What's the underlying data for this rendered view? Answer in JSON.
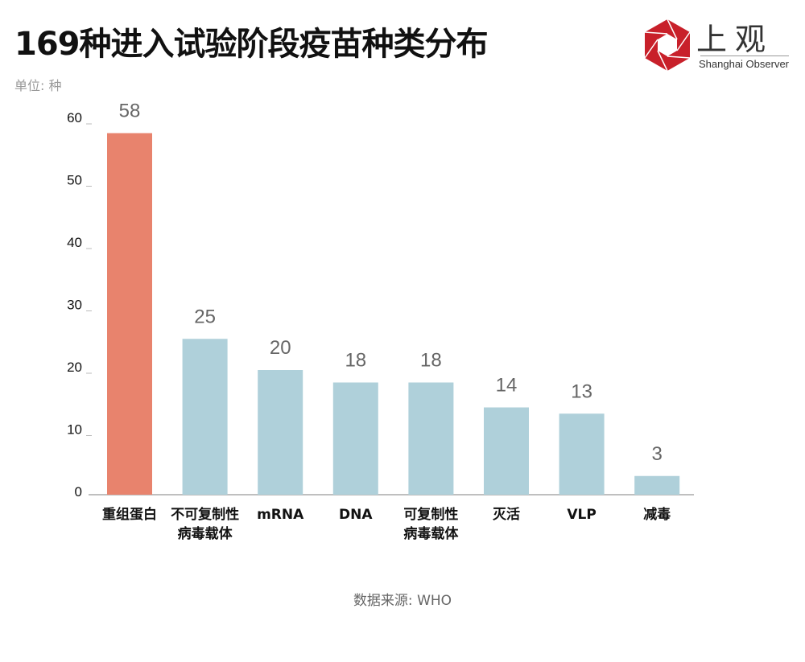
{
  "title": "169种进入试验阶段疫苗种类分布",
  "unit": "单位: 种",
  "logo": {
    "cn": "上观",
    "en": "Shanghai Observer",
    "color": "#c8202a"
  },
  "source": "数据来源: WHO",
  "chart_data": {
    "type": "bar",
    "categories": [
      [
        "重组蛋白"
      ],
      [
        "不可复制性",
        "病毒载体"
      ],
      [
        "mRNA"
      ],
      [
        "DNA"
      ],
      [
        "可复制性",
        "病毒载体"
      ],
      [
        "灭活"
      ],
      [
        "VLP"
      ],
      [
        "减毒"
      ]
    ],
    "values": [
      58,
      25,
      20,
      18,
      18,
      14,
      13,
      3
    ],
    "yticks": [
      0,
      10,
      20,
      30,
      40,
      50,
      60
    ],
    "ylim": [
      0,
      60
    ],
    "colors": {
      "highlight": "#e8836d",
      "default": "#afd0da"
    },
    "grid": false
  }
}
